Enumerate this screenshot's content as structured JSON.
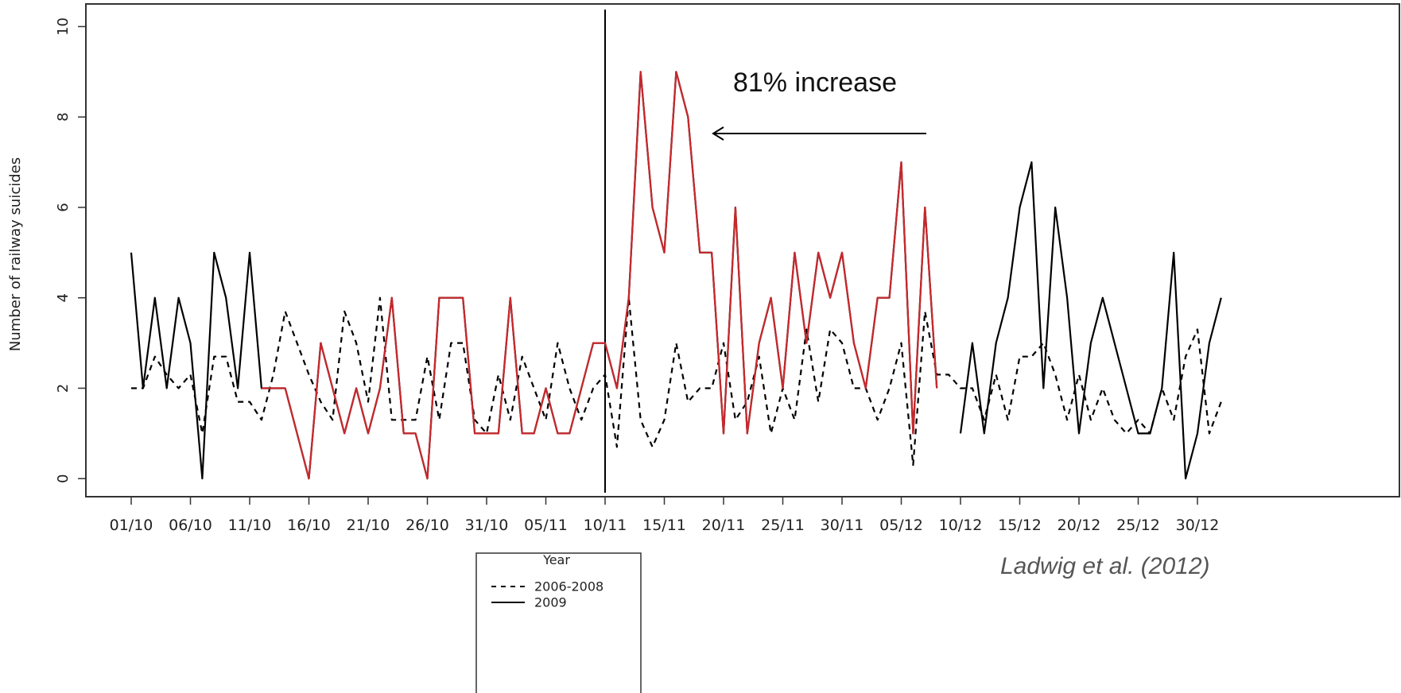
{
  "chart_data": {
    "type": "line",
    "y_label": "Number of railway suicides",
    "categories": [
      "01/10",
      null,
      null,
      null,
      null,
      "06/10",
      null,
      null,
      null,
      null,
      "11/10",
      null,
      null,
      null,
      null,
      "16/10",
      null,
      null,
      null,
      null,
      "21/10",
      null,
      null,
      null,
      null,
      "26/10",
      null,
      null,
      null,
      null,
      "31/10",
      null,
      null,
      null,
      null,
      "05/11",
      null,
      null,
      null,
      null,
      "10/11",
      null,
      null,
      null,
      null,
      "15/11",
      null,
      null,
      null,
      null,
      "20/11",
      null,
      null,
      null,
      null,
      "25/11",
      null,
      null,
      null,
      null,
      "30/11",
      null,
      null,
      null,
      null,
      "05/12",
      null,
      null,
      null,
      null,
      "10/12",
      null,
      null,
      null,
      null,
      "15/12",
      null,
      null,
      null,
      null,
      "20/12",
      null,
      null,
      null,
      null,
      "25/12",
      null,
      null,
      null,
      null,
      "30/12",
      null,
      null
    ],
    "series": [
      {
        "name": "2006-2008",
        "color": "#000000",
        "dash": true,
        "values": [
          2,
          2,
          2.7,
          2.3,
          2,
          2.3,
          1,
          2.7,
          2.7,
          1.7,
          1.7,
          1.3,
          2.3,
          3.7,
          3,
          2.3,
          1.7,
          1.3,
          3.7,
          3,
          1.7,
          4,
          1.3,
          1.3,
          1.3,
          2.7,
          1.3,
          3,
          3,
          1.3,
          1,
          2.3,
          1.3,
          2.7,
          2,
          1.3,
          3,
          2,
          1.3,
          2,
          2.3,
          0.7,
          4,
          1.3,
          0.7,
          1.3,
          3,
          1.7,
          2,
          2,
          3,
          1.3,
          1.7,
          2.7,
          1,
          2,
          1.3,
          3.3,
          1.7,
          3.3,
          3,
          2,
          2,
          1.3,
          2,
          3,
          0.3,
          3.7,
          2.3,
          2.3,
          2,
          2,
          1.3,
          2.3,
          1.3,
          2.7,
          2.7,
          3,
          2.3,
          1.3,
          2.3,
          1.3,
          2,
          1.3,
          1,
          1.3,
          1,
          2,
          1.3,
          2.7,
          3.3,
          1,
          1.7
        ]
      },
      {
        "name": "2009",
        "color": "#000000",
        "dash": false,
        "highlight": {
          "color": "#c8282d",
          "from": 11,
          "to": 68
        },
        "values": [
          5,
          2,
          4,
          2,
          4,
          3,
          0,
          5,
          4,
          2,
          5,
          2,
          2,
          2,
          1,
          0,
          3,
          2,
          1,
          2,
          1,
          2,
          4,
          1,
          1,
          0,
          4,
          4,
          4,
          1,
          1,
          1,
          4,
          1,
          1,
          2,
          1,
          1,
          2,
          3,
          3,
          2,
          4,
          9,
          6,
          5,
          9,
          8,
          5,
          5,
          1,
          6,
          1,
          3,
          4,
          2,
          5,
          3,
          5,
          4,
          5,
          3,
          2,
          4,
          4,
          7,
          1,
          6,
          2,
          null,
          1,
          3,
          1,
          3,
          4,
          6,
          7,
          2,
          6,
          4,
          1,
          3,
          4,
          3,
          2,
          1,
          1,
          2,
          5,
          0,
          1,
          3,
          4
        ]
      }
    ],
    "ylim": [
      -0.4,
      10.5
    ],
    "yticks": [
      0,
      2,
      4,
      6,
      8,
      10
    ],
    "vline": "10/11",
    "annotation": "81% increase",
    "legend_title": "Year",
    "source": "Ladwig et al. (2012)"
  }
}
